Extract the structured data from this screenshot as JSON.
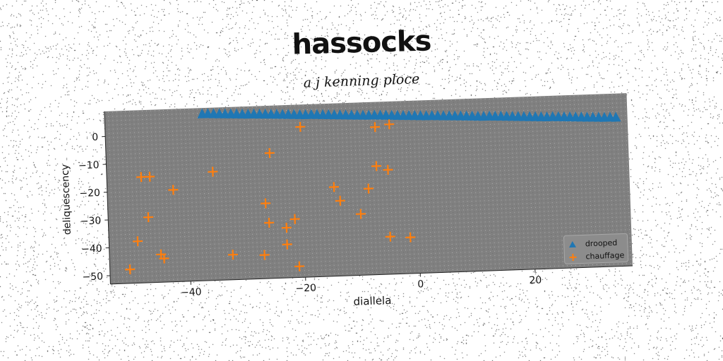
{
  "chart_data": {
    "type": "scatter",
    "title": "hassocks",
    "subtitle": "a j kenning ploce",
    "xlabel": "diallela",
    "ylabel": "deliquescency",
    "xlim": [
      -54,
      37
    ],
    "ylim": [
      -53,
      9
    ],
    "xticks": [
      -40,
      -20,
      0,
      20
    ],
    "yticks": [
      0,
      -10,
      -20,
      -30,
      -40,
      -50
    ],
    "grid": false,
    "legend_position": "lower-right",
    "background": "#808080",
    "series": [
      {
        "name": "drooped",
        "marker": "triangle",
        "color": "#1f77b4",
        "x": [
          -37,
          -36,
          -35,
          -34,
          -33,
          -32,
          -31,
          -30,
          -29,
          -28,
          -27,
          -26,
          -25,
          -24,
          -23,
          -22,
          -21,
          -20,
          -19,
          -18,
          -17,
          -16,
          -15,
          -14,
          -13,
          -12,
          -11,
          -10,
          -9,
          -8,
          -7,
          -6,
          -5,
          -4,
          -3,
          -2,
          -1,
          0,
          1,
          2,
          3,
          4,
          5,
          6,
          7,
          8,
          9,
          10,
          11,
          12,
          13,
          14,
          15,
          16,
          17,
          18,
          19,
          20,
          21,
          22,
          23,
          24,
          25,
          26,
          27,
          28,
          29,
          30,
          31,
          32,
          33,
          34,
          35
        ],
        "y": [
          6.6,
          6.6,
          6.5,
          6.4,
          6.3,
          6.2,
          6.1,
          6.0,
          5.9,
          5.9,
          5.8,
          5.7,
          5.6,
          5.5,
          5.4,
          5.3,
          5.2,
          5.1,
          5.0,
          5.0,
          4.9,
          4.8,
          4.7,
          4.6,
          4.5,
          4.4,
          4.3,
          4.2,
          4.1,
          4.0,
          4.0,
          3.9,
          3.8,
          3.7,
          3.6,
          3.5,
          3.4,
          3.3,
          3.2,
          3.1,
          3.1,
          3.0,
          2.9,
          2.8,
          2.7,
          2.6,
          2.5,
          2.4,
          2.3,
          2.2,
          2.2,
          2.1,
          2.0,
          1.9,
          1.8,
          1.7,
          1.6,
          1.5,
          1.4,
          1.3,
          1.2,
          1.2,
          1.1,
          1.0,
          0.9,
          0.8,
          0.7,
          0.6,
          0.5,
          0.4,
          0.3,
          0.3,
          0.2
        ]
      },
      {
        "name": "chauffage",
        "marker": "plus",
        "color": "#ff7f0e",
        "x": [
          -20,
          -7,
          -4.5,
          -25.5,
          -48,
          -46.5,
          -35.5,
          -42.5,
          -7,
          -5,
          -14.5,
          -8.5,
          -13.5,
          -47,
          -26.5,
          -21.5,
          -10,
          -26,
          -23,
          -49,
          -5,
          -23,
          -1.5,
          -45,
          -32.5,
          -44.5,
          -27,
          -50.5,
          -21
        ],
        "y": [
          1,
          0,
          0.8,
          -8,
          -15,
          -15,
          -14,
          -20,
          -14,
          -15.5,
          -21,
          -22,
          -26,
          -29.5,
          -26,
          -32,
          -31,
          -33,
          -35,
          -38,
          -39.5,
          -41,
          -40,
          -43,
          -44,
          -44.5,
          -44.5,
          -48,
          -49
        ]
      }
    ]
  }
}
